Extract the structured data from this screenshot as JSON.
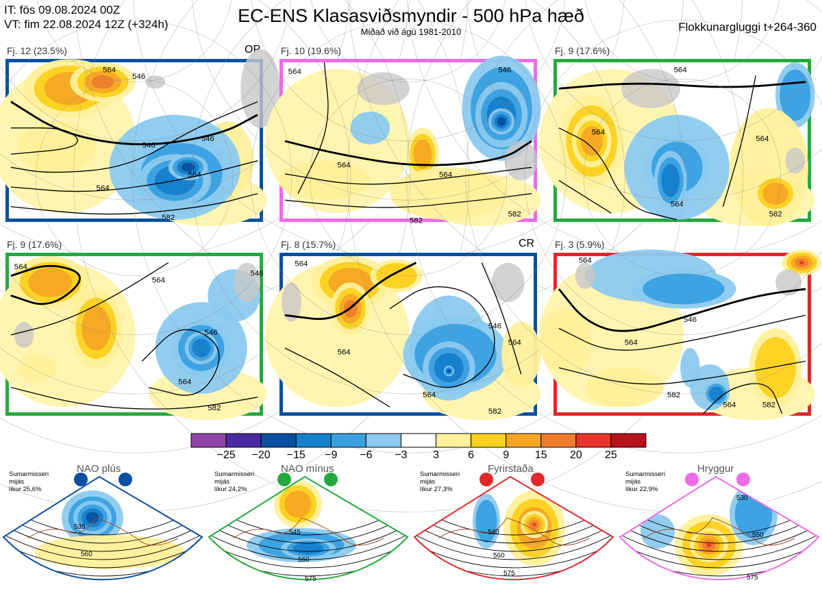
{
  "header": {
    "it": "IT: fös 09.08.2024 00Z",
    "vt": "VT: fim 22.08.2024 12Z  (+324h)",
    "title": "EC-ENS Klasasviðsmyndir - 500 hPa hæð",
    "subtitle": "Miðað við ágú 1981-2010",
    "window": "Flokkunargluggi t+264-360"
  },
  "panels": [
    {
      "label": "Fj. 12 (23.5%)",
      "tag": "OP",
      "border": "#0a4fa0",
      "contour_labels": [
        "564",
        "546",
        "546",
        "546",
        "564",
        "564",
        "582"
      ]
    },
    {
      "label": "Fj. 10 (19.6%)",
      "tag": "",
      "border": "#ee6be8",
      "contour_labels": [
        "564",
        "546",
        "564",
        "564",
        "582",
        "582"
      ]
    },
    {
      "label": "Fj. 9 (17.6%)",
      "tag": "",
      "border": "#22aa3c",
      "contour_labels": [
        "564",
        "564",
        "564",
        "564",
        "582"
      ]
    },
    {
      "label": "Fj. 9 (17.6%)",
      "tag": "",
      "border": "#22aa3c",
      "contour_labels": [
        "564",
        "564",
        "546",
        "564",
        "582",
        "546"
      ]
    },
    {
      "label": "Fj. 8 (15.7%)",
      "tag": "CR",
      "border": "#0a4fa0",
      "contour_labels": [
        "564",
        "564",
        "546",
        "564",
        "582",
        "564"
      ]
    },
    {
      "label": "Fj. 3 (5.9%)",
      "tag": "",
      "border": "#e02828",
      "contour_labels": [
        "564",
        "546",
        "564",
        "582",
        "564",
        "582"
      ]
    }
  ],
  "colorbar": {
    "colors": [
      "#8e44a6",
      "#4a2aa0",
      "#0a4fa0",
      "#1580cc",
      "#3aa0e0",
      "#8ccaef",
      "#ffffff",
      "#fff09a",
      "#fcd11e",
      "#f6a623",
      "#ef7c2c",
      "#e8342a",
      "#b5121b"
    ],
    "labels": [
      "−25",
      "−20",
      "−15",
      "−9",
      "−6",
      "−3",
      "3",
      "6",
      "9",
      "15",
      "20",
      "25"
    ]
  },
  "regimes": [
    {
      "name": "NAO plús",
      "color": "#0a4fa0",
      "note": [
        "Sumarmisseri",
        "mijás",
        "líkur 25,6%"
      ],
      "contour_labels": [
        "535",
        "560"
      ]
    },
    {
      "name": "NAO mínus",
      "color": "#22aa3c",
      "note": [
        "Sumarmisseri",
        "mijás",
        "líkur 24,2%"
      ],
      "contour_labels": [
        "545",
        "560",
        "575"
      ]
    },
    {
      "name": "Fyrirstaða",
      "color": "#e02828",
      "note": [
        "Sumarmisseri",
        "mijás",
        "líkur 27,3%"
      ],
      "contour_labels": [
        "540",
        "560",
        "575"
      ]
    },
    {
      "name": "Hryggur",
      "color": "#ee6be8",
      "note": [
        "Sumarmisseri",
        "mijás",
        "líkur 22,9%"
      ],
      "contour_labels": [
        "530",
        "550",
        "575"
      ]
    }
  ]
}
